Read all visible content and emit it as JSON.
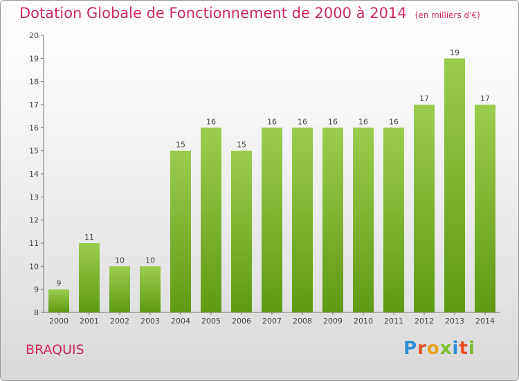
{
  "title": "Dotation Globale de Fonctionnement de 2000 à 2014",
  "subtitle": "(en milliers d'€)",
  "place": "BRAQUIS",
  "logo": {
    "text": "Proxiti",
    "colors": [
      "#2f8fd6",
      "#e8502a",
      "#e8a21a",
      "#7bbf2a",
      "#2f8fd6",
      "#e8502a",
      "#7bbf2a"
    ]
  },
  "colors": {
    "bar_light": "#9ccc4f",
    "bar_dark": "#5f9a14",
    "title": "#cc2a5a",
    "axis": "#555555"
  },
  "chart_data": {
    "type": "bar",
    "title": "Dotation Globale de Fonctionnement de 2000 à 2014",
    "subtitle": "(en milliers d'€)",
    "categories": [
      "2000",
      "2001",
      "2002",
      "2003",
      "2004",
      "2005",
      "2006",
      "2007",
      "2008",
      "2009",
      "2010",
      "2011",
      "2012",
      "2013",
      "2014"
    ],
    "values": [
      9,
      11,
      10,
      10,
      15,
      16,
      15,
      16,
      16,
      16,
      16,
      16,
      17,
      19,
      17
    ],
    "ylim": [
      8,
      20
    ],
    "yticks": [
      8,
      9,
      10,
      11,
      12,
      13,
      14,
      15,
      16,
      17,
      18,
      19,
      20
    ],
    "grid": false,
    "data_labels": true
  }
}
